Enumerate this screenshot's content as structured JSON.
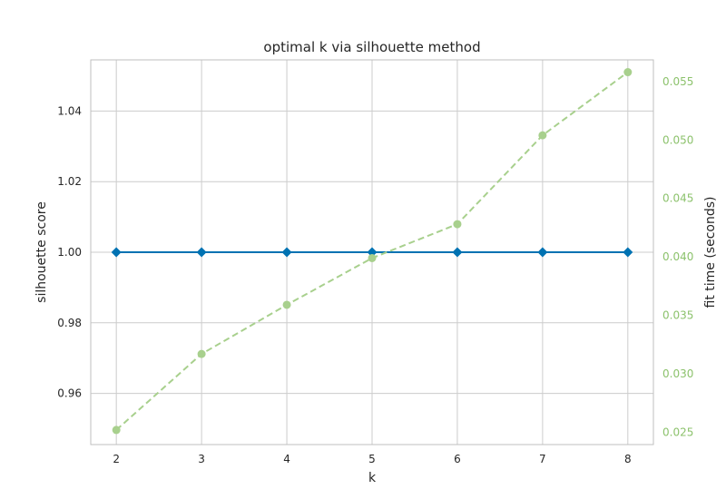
{
  "chart_data": {
    "type": "line",
    "title": "optimal k via silhouette method",
    "xlabel": "k",
    "ylabel": "silhouette score",
    "y2label": "fit time (seconds)",
    "x": [
      2,
      3,
      4,
      5,
      6,
      7,
      8
    ],
    "xticks": [
      "2",
      "3",
      "4",
      "5",
      "6",
      "7",
      "8"
    ],
    "xlim": [
      1.7,
      8.3
    ],
    "ylim": [
      0.9455,
      1.0545
    ],
    "yticks": [
      "0.96",
      "0.98",
      "1.00",
      "1.02",
      "1.04"
    ],
    "y2lim": [
      0.02395,
      0.05685
    ],
    "y2ticks": [
      "0.025",
      "0.030",
      "0.035",
      "0.040",
      "0.045",
      "0.050",
      "0.055"
    ],
    "grid": true,
    "series": [
      {
        "axis": "left",
        "values": [
          1.0,
          1.0,
          1.0,
          1.0,
          1.0,
          1.0,
          1.0
        ],
        "color": "#0072b2",
        "marker": "diamond",
        "style": "solid"
      },
      {
        "axis": "right",
        "values": [
          0.0252,
          0.0317,
          0.0359,
          0.0399,
          0.0428,
          0.0504,
          0.0558
        ],
        "color": "#a8d08d",
        "marker": "circle",
        "style": "dashed"
      }
    ],
    "colors": {
      "right_axis_text": "#8cc26c",
      "grid": "#cccccc",
      "frame": "#bfbfbf"
    }
  }
}
